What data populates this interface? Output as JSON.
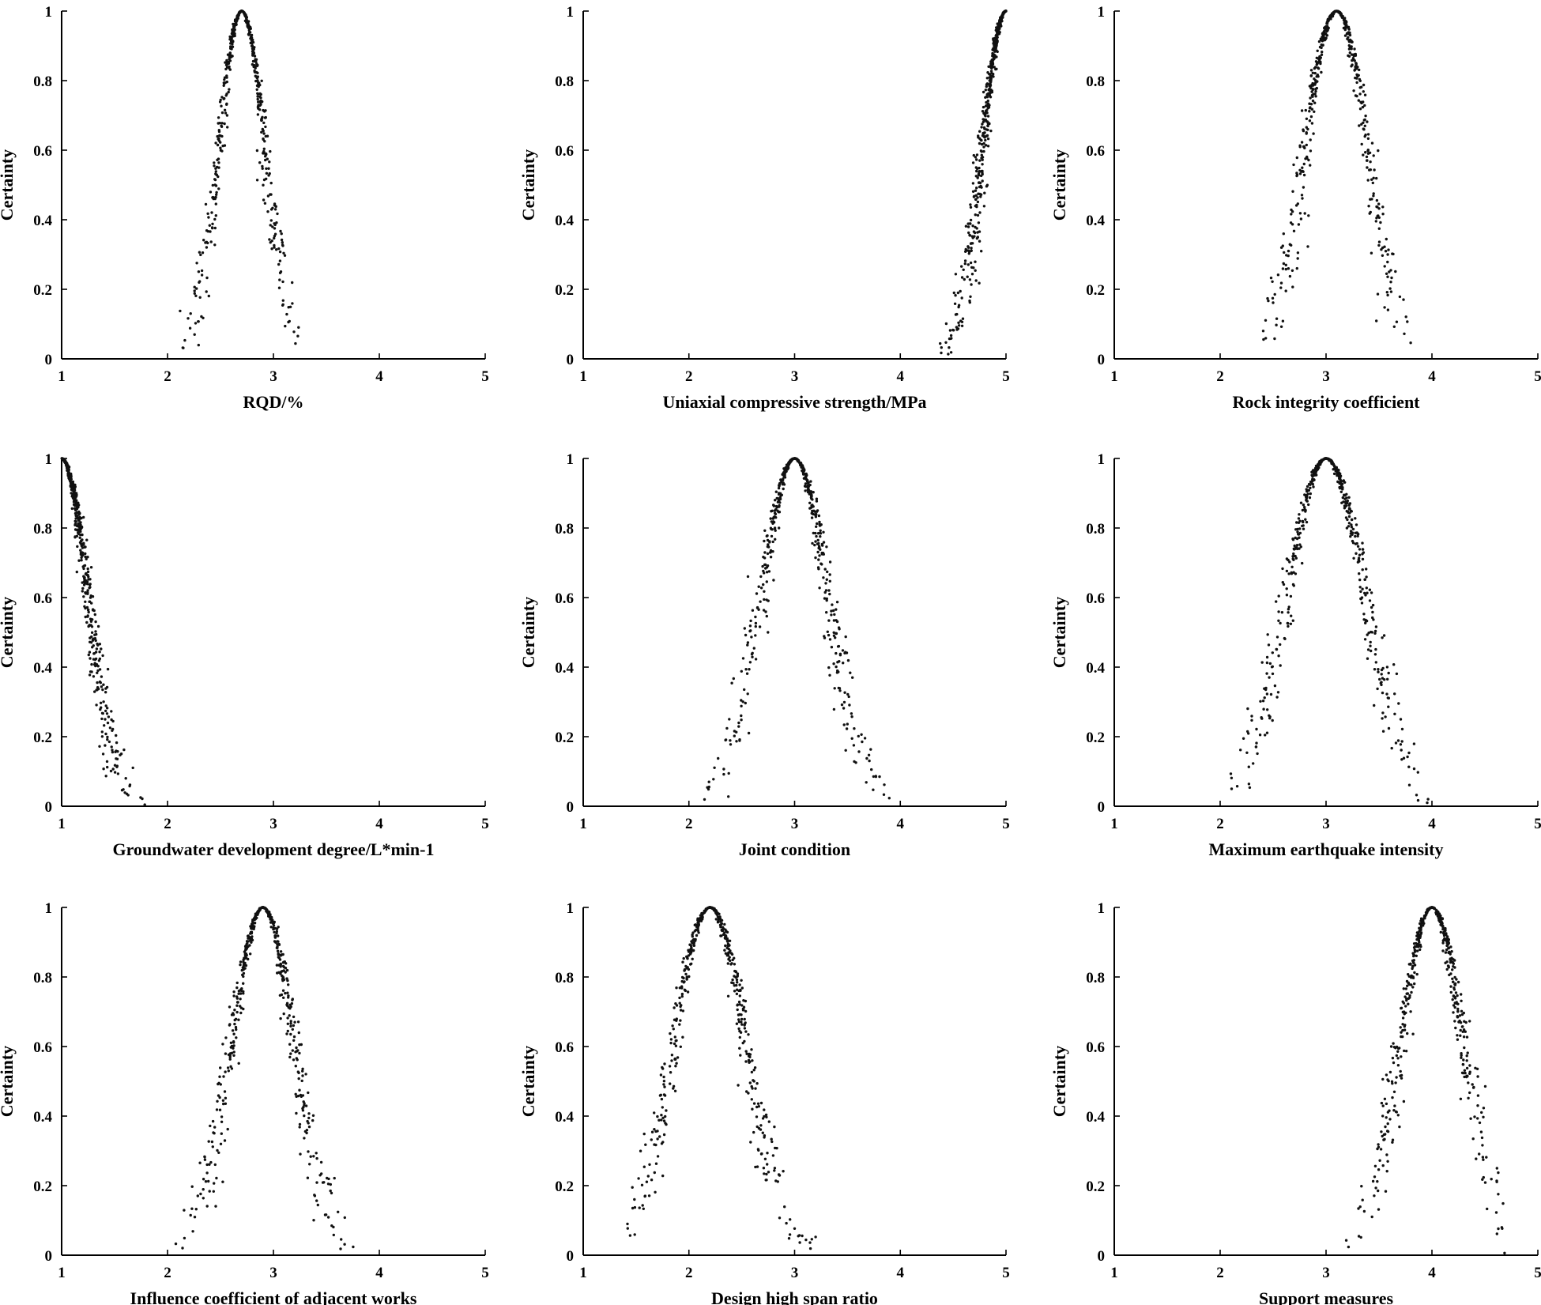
{
  "chart_data": [
    {
      "type": "scatter",
      "xlabel": "RQD/%",
      "ylabel": "Certainty",
      "xlim": [
        1,
        5
      ],
      "ylim": [
        0,
        1
      ],
      "xticks": [
        "1",
        "2",
        "3",
        "4",
        "5"
      ],
      "yticks": [
        "0",
        "0.2",
        "0.4",
        "0.6",
        "0.8",
        "1"
      ],
      "grid": false,
      "center": 2.7,
      "spread": 0.22,
      "xmin": 2.1,
      "xmax": 3.25
    },
    {
      "type": "scatter",
      "xlabel": "Uniaxial compressive strength/MPa",
      "ylabel": "Certainty",
      "xlim": [
        1,
        5
      ],
      "ylim": [
        0,
        1
      ],
      "xticks": [
        "1",
        "2",
        "3",
        "4",
        "5"
      ],
      "yticks": [
        "0",
        "0.2",
        "0.4",
        "0.6",
        "0.8",
        "1"
      ],
      "grid": false,
      "center": 5.0,
      "spread": 0.22,
      "xmin": 4.35,
      "xmax": 5.0
    },
    {
      "type": "scatter",
      "xlabel": "Rock integrity coefficient",
      "ylabel": "Certainty",
      "xlim": [
        1,
        5
      ],
      "ylim": [
        0,
        1
      ],
      "xticks": [
        "1",
        "2",
        "3",
        "4",
        "5"
      ],
      "yticks": [
        "0",
        "0.2",
        "0.4",
        "0.6",
        "0.8",
        "1"
      ],
      "grid": false,
      "center": 3.1,
      "spread": 0.3,
      "xmin": 2.4,
      "xmax": 3.9
    },
    {
      "type": "scatter",
      "xlabel": "Groundwater development degree/L*min-1",
      "ylabel": "Certainty",
      "xlim": [
        1,
        5
      ],
      "ylim": [
        0,
        1
      ],
      "xticks": [
        "1",
        "2",
        "3",
        "4",
        "5"
      ],
      "yticks": [
        "0",
        "0.2",
        "0.4",
        "0.6",
        "0.8",
        "1"
      ],
      "grid": false,
      "center": 1.0,
      "spread": 0.25,
      "xmin": 1.0,
      "xmax": 1.8
    },
    {
      "type": "scatter",
      "xlabel": "Joint condition",
      "ylabel": "Certainty",
      "xlim": [
        1,
        5
      ],
      "ylim": [
        0,
        1
      ],
      "xticks": [
        "1",
        "2",
        "3",
        "4",
        "5"
      ],
      "yticks": [
        "0",
        "0.2",
        "0.4",
        "0.6",
        "0.8",
        "1"
      ],
      "grid": false,
      "center": 3.0,
      "spread": 0.32,
      "xmin": 2.1,
      "xmax": 4.0
    },
    {
      "type": "scatter",
      "xlabel": "Maximum earthquake intensity",
      "ylabel": "Certainty",
      "xlim": [
        1,
        5
      ],
      "ylim": [
        0,
        1
      ],
      "xticks": [
        "1",
        "2",
        "3",
        "4",
        "5"
      ],
      "yticks": [
        "0",
        "0.2",
        "0.4",
        "0.6",
        "0.8",
        "1"
      ],
      "grid": false,
      "center": 3.0,
      "spread": 0.37,
      "xmin": 2.1,
      "xmax": 4.25
    },
    {
      "type": "scatter",
      "xlabel": "Influence coefficient of adjacent works",
      "ylabel": "Certainty",
      "xlim": [
        1,
        5
      ],
      "ylim": [
        0,
        1
      ],
      "xticks": [
        "1",
        "2",
        "3",
        "4",
        "5"
      ],
      "yticks": [
        "0",
        "0.2",
        "0.4",
        "0.6",
        "0.8",
        "1"
      ],
      "grid": false,
      "center": 2.9,
      "spread": 0.3,
      "xmin": 2.05,
      "xmax": 3.8
    },
    {
      "type": "scatter",
      "xlabel": "Design high span ratio",
      "ylabel": "Certainty",
      "xlim": [
        1,
        5
      ],
      "ylim": [
        0,
        1
      ],
      "xticks": [
        "1",
        "2",
        "3",
        "4",
        "5"
      ],
      "yticks": [
        "0",
        "0.2",
        "0.4",
        "0.6",
        "0.8",
        "1"
      ],
      "grid": false,
      "center": 2.2,
      "spread": 0.35,
      "xmin": 1.3,
      "xmax": 3.25
    },
    {
      "type": "scatter",
      "xlabel": "Support measures",
      "ylabel": "Certainty",
      "xlim": [
        1,
        5
      ],
      "ylim": [
        0,
        1
      ],
      "xticks": [
        "1",
        "2",
        "3",
        "4",
        "5"
      ],
      "yticks": [
        "0",
        "0.2",
        "0.4",
        "0.6",
        "0.8",
        "1"
      ],
      "grid": false,
      "center": 4.0,
      "spread": 0.3,
      "xmin": 3.15,
      "xmax": 4.7
    }
  ]
}
